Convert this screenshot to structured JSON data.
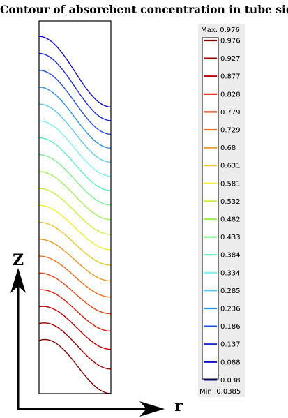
{
  "chart_data": {
    "type": "contour",
    "title": "Contour of absorebent concentration in tube side",
    "xlabel": "r",
    "ylabel": "z",
    "legend": {
      "max_label": "Max: 0.976",
      "min_label": "Min: 0.0385",
      "levels": [
        "0.976",
        "0.927",
        "0.877",
        "0.828",
        "0.779",
        "0.729",
        "0.68",
        "0.631",
        "0.581",
        "0.532",
        "0.482",
        "0.433",
        "0.384",
        "0.334",
        "0.285",
        "0.236",
        "0.186",
        "0.137",
        "0.088",
        "0.038"
      ]
    },
    "colors": [
      "#800000",
      "#a00000",
      "#c00000",
      "#d82010",
      "#e04818",
      "#e87020",
      "#e89828",
      "#e8c828",
      "#f0f030",
      "#c8f040",
      "#a0f060",
      "#80f090",
      "#60f0c0",
      "#80f0f0",
      "#60c8f0",
      "#3090e0",
      "#2050e0",
      "#1828e0",
      "#1010c0",
      "#101080"
    ]
  }
}
